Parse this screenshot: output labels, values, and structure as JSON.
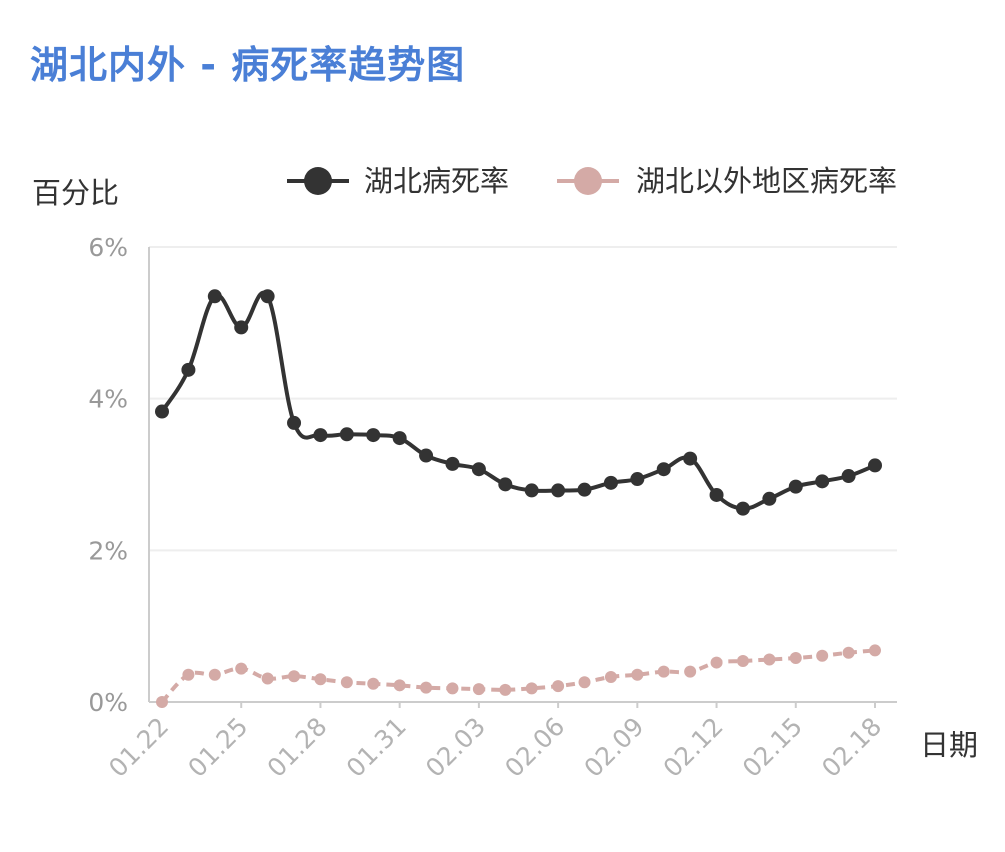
{
  "header": {
    "title": "湖北内外 - 病死率趋势图"
  },
  "axis_labels": {
    "y_unit": "百分比",
    "x_name": "日期"
  },
  "colors": {
    "title": "#4a7fd6",
    "hubei": "#333333",
    "outside": "#d4aaa6",
    "grid": "#eeeeee",
    "axis": "#cccccc"
  },
  "chart_data": {
    "type": "line",
    "title": "湖北内外 - 病死率趋势图",
    "xlabel": "日期",
    "ylabel": "百分比",
    "x": [
      "01.22",
      "01.23",
      "01.24",
      "01.25",
      "01.26",
      "01.27",
      "01.28",
      "01.29",
      "01.30",
      "01.31",
      "02.01",
      "02.02",
      "02.03",
      "02.04",
      "02.05",
      "02.06",
      "02.07",
      "02.08",
      "02.09",
      "02.10",
      "02.11",
      "02.12",
      "02.13",
      "02.14",
      "02.15",
      "02.16",
      "02.17",
      "02.18"
    ],
    "xticks": [
      "01.22",
      "01.25",
      "01.28",
      "01.31",
      "02.03",
      "02.06",
      "02.09",
      "02.12",
      "02.15",
      "02.18"
    ],
    "yticks": [
      "0%",
      "2%",
      "4%",
      "6%"
    ],
    "ylim": [
      0,
      6
    ],
    "grid": true,
    "legend": "top",
    "series": [
      {
        "name": "湖北病死率",
        "style": "solid",
        "values": [
          3.83,
          4.38,
          5.35,
          4.94,
          5.35,
          3.68,
          3.52,
          3.53,
          3.52,
          3.48,
          3.25,
          3.14,
          3.07,
          2.87,
          2.79,
          2.79,
          2.8,
          2.89,
          2.94,
          3.07,
          3.21,
          2.73,
          2.55,
          2.68,
          2.84,
          2.91,
          2.98,
          3.12
        ]
      },
      {
        "name": "湖北以外地区病死率",
        "style": "dashed",
        "values": [
          0.0,
          0.36,
          0.36,
          0.44,
          0.31,
          0.34,
          0.3,
          0.26,
          0.24,
          0.22,
          0.19,
          0.18,
          0.17,
          0.16,
          0.18,
          0.21,
          0.26,
          0.33,
          0.36,
          0.4,
          0.4,
          0.52,
          0.54,
          0.56,
          0.58,
          0.61,
          0.65,
          0.68
        ]
      }
    ]
  }
}
